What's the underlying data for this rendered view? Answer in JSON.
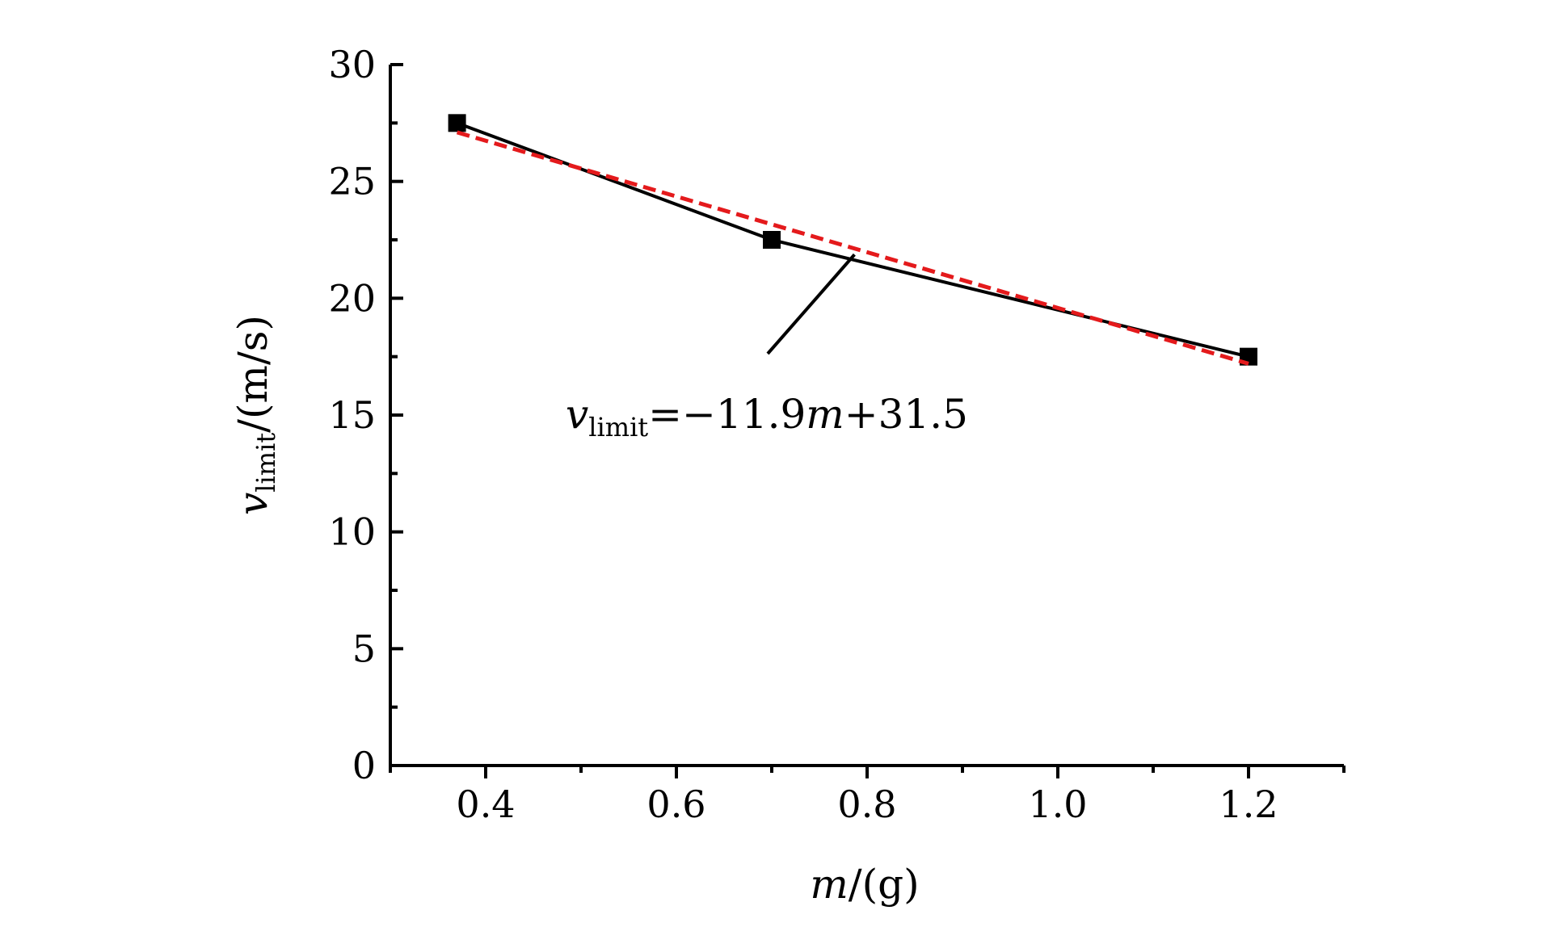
{
  "chart_data": {
    "type": "line",
    "title": "",
    "xlabel": {
      "var": "m",
      "rest": "/(g)"
    },
    "ylabel": {
      "var": "v",
      "sub": "limit",
      "rest": "/(m/s)"
    },
    "xlim": [
      0.3,
      1.3
    ],
    "ylim": [
      0,
      30
    ],
    "x_ticks": [
      0.4,
      0.6,
      0.8,
      1.0,
      1.2
    ],
    "x_tick_labels": [
      "0.4",
      "0.6",
      "0.8",
      "1.0",
      "1.2"
    ],
    "x_minor_ticks": [
      0.3,
      0.5,
      0.7,
      0.9,
      1.1,
      1.3
    ],
    "y_ticks": [
      0,
      5,
      10,
      15,
      20,
      25,
      30
    ],
    "y_tick_labels": [
      "0",
      "5",
      "10",
      "15",
      "20",
      "25",
      "30"
    ],
    "y_minor_ticks": [
      2.5,
      7.5,
      12.5,
      17.5,
      22.5,
      27.5
    ],
    "grid": false,
    "series": [
      {
        "style": "solid-line-square-markers",
        "color": "#000000",
        "x": [
          0.37,
          0.7,
          1.2
        ],
        "y": [
          27.5,
          22.5,
          17.5
        ]
      },
      {
        "style": "dashed-fit-line",
        "color": "#e41a1c",
        "x": [
          0.37,
          1.2
        ],
        "y": [
          27.1,
          17.2
        ]
      }
    ],
    "annotation": {
      "parts": [
        {
          "t": "v",
          "style": "italic"
        },
        {
          "t": "limit",
          "style": "sub"
        },
        {
          "t": "=−11.9",
          "style": "normal"
        },
        {
          "t": "m",
          "style": "italic"
        },
        {
          "t": "+31.5",
          "style": "normal"
        }
      ],
      "pointer_x": 0.78,
      "pointer_y": 21.8
    }
  }
}
